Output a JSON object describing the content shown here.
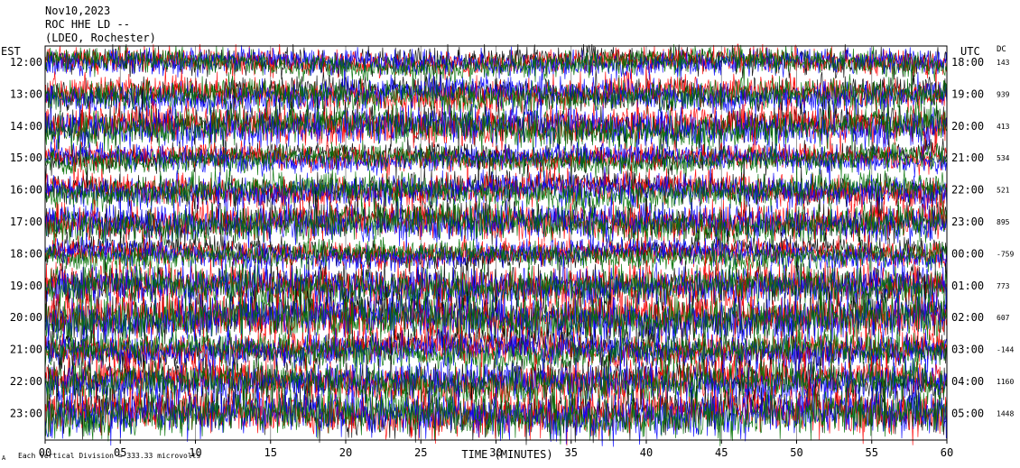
{
  "header": {
    "date": "Nov10,2023",
    "station": "ROC HHE LD --",
    "location": "(LDEO, Rochester)"
  },
  "labels": {
    "left_tz": "EST",
    "right_tz": "UTC",
    "dc_title": "DC",
    "xlabel": "TIME (MINUTES)",
    "footnote": "Each Vertical Division =  333.33 microvolts",
    "footnote_mark": "A"
  },
  "colors": {
    "trace_cycle": [
      "#000000",
      "#ff0000",
      "#0000ff",
      "#007000"
    ],
    "grid": "#808080",
    "frame": "#000000",
    "background": "#ffffff"
  },
  "chart_data": {
    "type": "line",
    "title": "",
    "xlabel": "TIME (MINUTES)",
    "ylabel": "",
    "xlim": [
      0,
      60
    ],
    "x_ticks": [
      "00",
      "05",
      "10",
      "15",
      "20",
      "25",
      "30",
      "35",
      "40",
      "45",
      "50",
      "55",
      "60"
    ],
    "grid": true,
    "rows": [
      {
        "left": "12:00",
        "right": "18:00",
        "dc": "143"
      },
      {
        "left": "13:00",
        "right": "19:00",
        "dc": "939"
      },
      {
        "left": "14:00",
        "right": "20:00",
        "dc": "413"
      },
      {
        "left": "15:00",
        "right": "21:00",
        "dc": "534"
      },
      {
        "left": "16:00",
        "right": "22:00",
        "dc": "521"
      },
      {
        "left": "17:00",
        "right": "23:00",
        "dc": "895"
      },
      {
        "left": "18:00",
        "right": "00:00",
        "dc": "-759"
      },
      {
        "left": "19:00",
        "right": "01:00",
        "dc": "773"
      },
      {
        "left": "20:00",
        "right": "02:00",
        "dc": "607"
      },
      {
        "left": "21:00",
        "right": "03:00",
        "dc": "-144"
      },
      {
        "left": "22:00",
        "right": "04:00",
        "dc": "1160"
      },
      {
        "left": "23:00",
        "right": "05:00",
        "dc": "1448"
      }
    ]
  }
}
